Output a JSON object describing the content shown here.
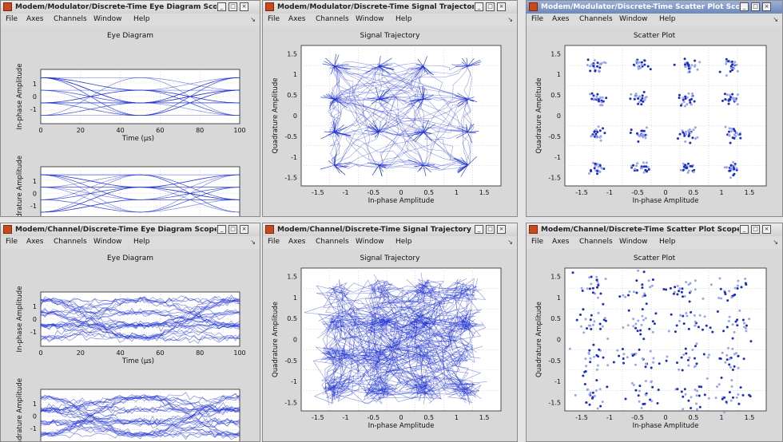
{
  "menu": [
    "File",
    "Axes",
    "Channels",
    "Window",
    "Help"
  ],
  "colors": {
    "trace": "#1a2ecf",
    "trace_light": "#4f63e6",
    "point_light": "#9aa6ec",
    "point_dark": "#1a2ec0"
  },
  "windows": [
    {
      "title": "Modem/Modulator/Discrete-Time Eye Diagram Sco",
      "kind": "eye",
      "noisy": false,
      "active": false,
      "plot_title": "Eye Diagram",
      "panels": [
        {
          "ylabel": "In-phase Amplitude",
          "yticks": [
            "1",
            "0",
            "-1"
          ]
        },
        {
          "ylabel": "Quadrature Amplitude",
          "yticks": [
            "1",
            "0",
            "-1"
          ]
        }
      ],
      "xlabel": "Time (µs)",
      "xticks": [
        "0",
        "20",
        "40",
        "60",
        "80",
        "100"
      ],
      "chart_data": {
        "type": "line",
        "x_range": [
          0,
          100
        ],
        "y_levels": [
          -3,
          -1,
          1,
          3
        ]
      }
    },
    {
      "title": "Modem/Modulator/Discrete-Time Signal Trajectory",
      "kind": "traj",
      "noisy": false,
      "active": false,
      "plot_title": "Signal Trajectory",
      "ylabel": "Quadrature Amplitude",
      "xlabel": "In-phase Amplitude",
      "xticks": [
        "-1.5",
        "-1",
        "-0.5",
        "0",
        "0.5",
        "1",
        "1.5"
      ],
      "yticks": [
        "1.5",
        "1",
        "0.5",
        "0",
        "-0.5",
        "-1",
        "-1.5"
      ],
      "chart_data": {
        "type": "line",
        "constellation": [
          -1.2,
          -0.4,
          0.4,
          1.2
        ],
        "xlim": [
          -1.8,
          1.8
        ],
        "ylim": [
          -1.7,
          1.7
        ]
      }
    },
    {
      "title": "Modem/Modulator/Discrete-Time Scatter Plot Scop",
      "kind": "scatter",
      "noisy": false,
      "active": true,
      "plot_title": "Scatter Plot",
      "ylabel": "Quadrature Amplitude",
      "xlabel": "In-phase Amplitude",
      "xticks": [
        "-1.5",
        "-1",
        "-0.5",
        "0",
        "0.5",
        "1",
        "1.5"
      ],
      "yticks": [
        "1.5",
        "1",
        "0.5",
        "0",
        "-0.5",
        "-1",
        "-1.5"
      ],
      "chart_data": {
        "type": "scatter",
        "centers": [
          -1.25,
          -0.45,
          0.4,
          1.2
        ],
        "xlim": [
          -1.8,
          1.8
        ],
        "ylim": [
          -1.7,
          1.7
        ]
      }
    },
    {
      "title": "Modem/Channel/Discrete-Time Eye Diagram Scope",
      "kind": "eye",
      "noisy": true,
      "active": false,
      "plot_title": "Eye Diagram",
      "panels": [
        {
          "ylabel": "In-phase Amplitude",
          "yticks": [
            "1",
            "0",
            "-1"
          ]
        },
        {
          "ylabel": "Quadrature Amplitude",
          "yticks": [
            "1",
            "0",
            "-1"
          ]
        }
      ],
      "xlabel": "Time (µs)",
      "xticks": [
        "0",
        "20",
        "40",
        "60",
        "80",
        "100"
      ],
      "chart_data": {
        "type": "line",
        "x_range": [
          0,
          100
        ],
        "y_levels": [
          -3,
          -1,
          1,
          3
        ]
      }
    },
    {
      "title": "Modem/Channel/Discrete-Time Signal Trajectory S",
      "kind": "traj",
      "noisy": true,
      "active": false,
      "plot_title": "Signal Trajectory",
      "ylabel": "Quadrature Amplitude",
      "xlabel": "In-phase Amplitude",
      "xticks": [
        "-1.5",
        "-1",
        "-0.5",
        "0",
        "0.5",
        "1",
        "1.5"
      ],
      "yticks": [
        "1.5",
        "1",
        "0.5",
        "0",
        "-0.5",
        "-1",
        "-1.5"
      ],
      "chart_data": {
        "type": "line",
        "constellation": [
          -1.2,
          -0.4,
          0.4,
          1.2
        ],
        "xlim": [
          -1.8,
          1.8
        ],
        "ylim": [
          -1.7,
          1.7
        ]
      }
    },
    {
      "title": "Modem/Channel/Discrete-Time Scatter Plot Scope",
      "kind": "scatter",
      "noisy": true,
      "active": false,
      "plot_title": "Scatter Plot",
      "ylabel": "Quadrature Amplitude",
      "xlabel": "In-phase Amplitude",
      "xticks": [
        "-1.5",
        "-1",
        "-0.5",
        "0",
        "0.5",
        "1",
        "1.5"
      ],
      "yticks": [
        "1.5",
        "1",
        "0.5",
        "0",
        "-0.5",
        "-1",
        "-1.5"
      ],
      "chart_data": {
        "type": "scatter",
        "centers": [
          -1.3,
          -0.45,
          0.4,
          1.2
        ],
        "xlim": [
          -1.8,
          1.8
        ],
        "ylim": [
          -1.7,
          1.7
        ]
      }
    }
  ]
}
